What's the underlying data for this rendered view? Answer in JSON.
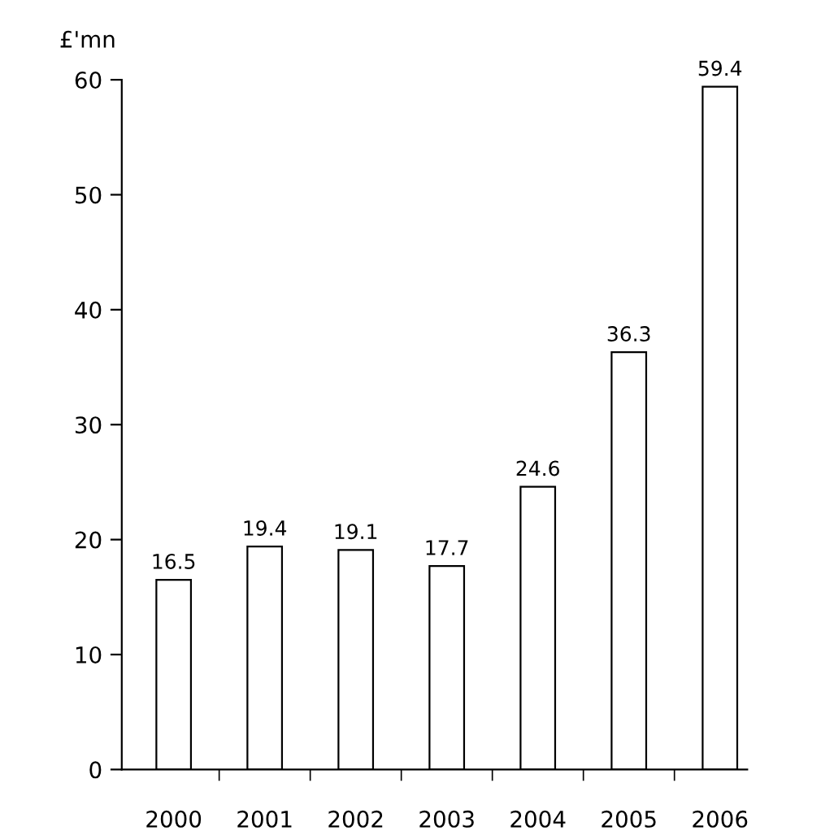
{
  "chart_data": {
    "type": "bar",
    "ylabel": "£'mn",
    "categories": [
      "2000",
      "2001",
      "2002",
      "2003",
      "2004",
      "2005",
      "2006"
    ],
    "values": [
      16.5,
      19.4,
      19.1,
      17.7,
      24.6,
      36.3,
      59.4
    ],
    "color": "#ffffff",
    "ylim": [
      0,
      60
    ],
    "yticks": [
      0,
      10,
      20,
      30,
      40,
      50,
      60
    ],
    "grid": false,
    "data_labels": true
  }
}
